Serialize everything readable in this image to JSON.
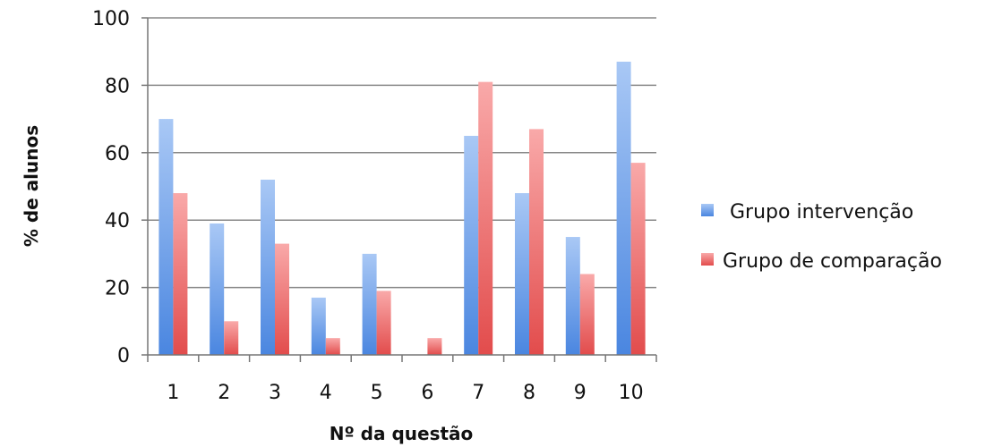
{
  "chart_data": {
    "type": "bar",
    "title": "",
    "xlabel": "Nº da questão",
    "ylabel": "% de alunos",
    "categories": [
      "1",
      "2",
      "3",
      "4",
      "5",
      "6",
      "7",
      "8",
      "9",
      "10"
    ],
    "series": [
      {
        "name": "Grupo intervenção",
        "values": [
          70,
          39,
          52,
          17,
          30,
          0,
          65,
          48,
          35,
          87
        ],
        "color": "#5a93e8"
      },
      {
        "name": "Grupo de comparação",
        "values": [
          48,
          10,
          33,
          5,
          19,
          5,
          81,
          67,
          24,
          57
        ],
        "color": "#ef6f6f"
      }
    ],
    "ylim": [
      0,
      100
    ],
    "yticks": [
      "0",
      "20",
      "40",
      "60",
      "80",
      "100"
    ],
    "grid": true,
    "legend_position": "right"
  }
}
